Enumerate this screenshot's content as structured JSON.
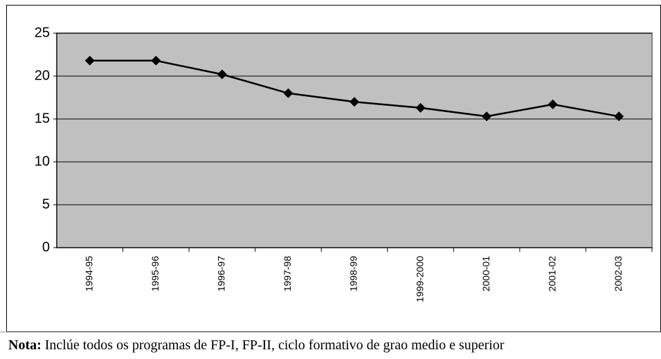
{
  "chart_data": {
    "type": "line",
    "categories": [
      "1994-95",
      "1995-96",
      "1996-97",
      "1997-98",
      "1998-99",
      "1999-2000",
      "2000-01",
      "2001-02",
      "2002-03"
    ],
    "values": [
      21.8,
      21.8,
      20.2,
      18.0,
      17.0,
      16.3,
      15.3,
      16.7,
      15.3
    ],
    "color": "#000000",
    "plot_background": "#c0c0c0",
    "ylim": [
      0,
      25
    ],
    "yticks": [
      0,
      5,
      10,
      15,
      20,
      25
    ],
    "grid": true,
    "note_label": "Nota:",
    "note": "Inclúe todos os programas de FP-I, FP-II, ciclo formativo de grao medio e superior"
  }
}
